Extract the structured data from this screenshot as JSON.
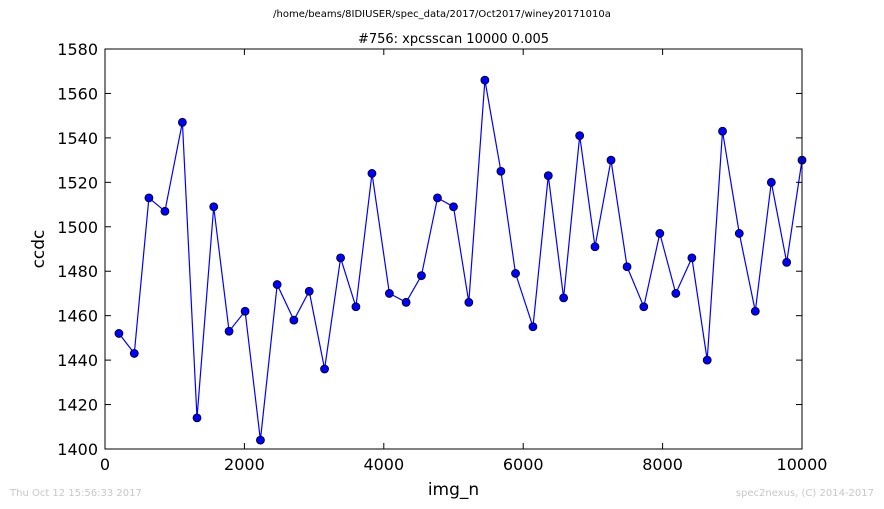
{
  "page": {
    "suptitle": "/home/beams/8IDIUSER/spec_data/2017/Oct2017/winey20171010a",
    "timestamp": "Thu Oct 12 15:56:33 2017",
    "credit": "spec2nexus, (C) 2014-2017"
  },
  "chart_data": {
    "type": "line",
    "title": "#756: xpcsscan 10000 0.005",
    "xlabel": "img_n",
    "ylabel": "ccdc",
    "xlim": [
      0,
      10000
    ],
    "ylim": [
      1400,
      1580
    ],
    "xticks": [
      0,
      2000,
      4000,
      6000,
      8000,
      10000
    ],
    "yticks": [
      1400,
      1420,
      1440,
      1460,
      1480,
      1500,
      1520,
      1540,
      1560,
      1580
    ],
    "grid": false,
    "series": [
      {
        "color": "#0000ff",
        "marker": "circle",
        "x": [
          200,
          420,
          630,
          860,
          1110,
          1320,
          1560,
          1780,
          2010,
          2230,
          2470,
          2710,
          2930,
          3150,
          3380,
          3600,
          3830,
          4080,
          4320,
          4540,
          4770,
          5000,
          5220,
          5450,
          5680,
          5890,
          6140,
          6360,
          6580,
          6810,
          7030,
          7260,
          7490,
          7730,
          7960,
          8190,
          8420,
          8640,
          8860,
          9100,
          9330,
          9560,
          9780,
          10000
        ],
        "y": [
          1452,
          1443,
          1513,
          1507,
          1547,
          1414,
          1509,
          1453,
          1462,
          1404,
          1474,
          1458,
          1471,
          1436,
          1486,
          1464,
          1524,
          1470,
          1466,
          1478,
          1513,
          1509,
          1466,
          1566,
          1525,
          1479,
          1455,
          1523,
          1468,
          1541,
          1491,
          1530,
          1482,
          1464,
          1497,
          1470,
          1486,
          1440,
          1543,
          1497,
          1462,
          1520,
          1484,
          1530
        ]
      }
    ]
  }
}
